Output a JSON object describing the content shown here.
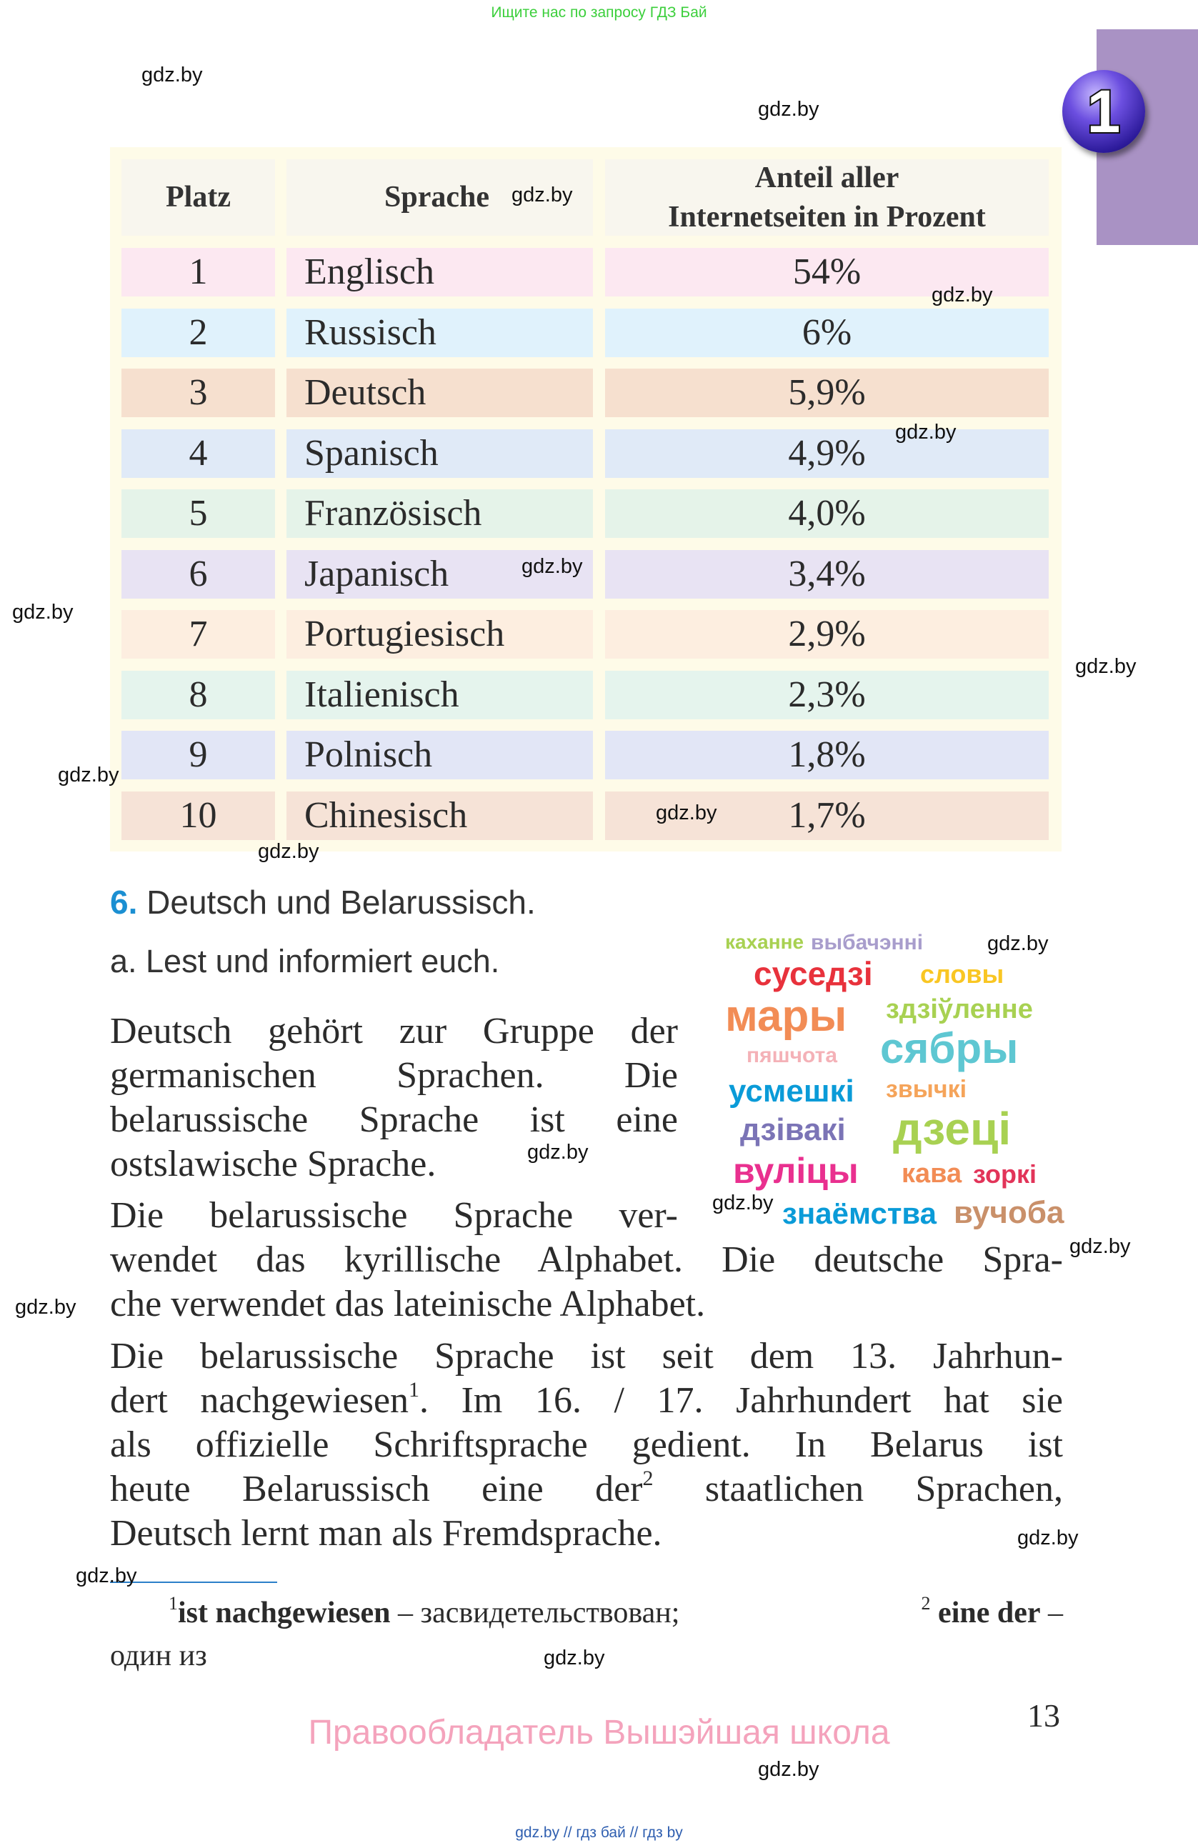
{
  "top_note": "Ищите нас по запросу ГДЗ Бай",
  "chapter_badge": "1",
  "table": {
    "headers": [
      "Platz",
      "Sprache",
      "Anteil aller",
      "Internetseiten in Prozent"
    ],
    "rows": [
      {
        "platz": "1",
        "sprache": "Englisch",
        "anteil": "54%",
        "color": "#fce8f1"
      },
      {
        "platz": "2",
        "sprache": "Russisch",
        "anteil": "6%",
        "color": "#e0f2fc"
      },
      {
        "platz": "3",
        "sprache": "Deutsch",
        "anteil": "5,9%",
        "color": "#f6e0cf"
      },
      {
        "platz": "4",
        "sprache": "Spanisch",
        "anteil": "4,9%",
        "color": "#e0eaf7"
      },
      {
        "platz": "5",
        "sprache": "Französisch",
        "anteil": "4,0%",
        "color": "#e5f3e9"
      },
      {
        "platz": "6",
        "sprache": "Japanisch",
        "anteil": "3,4%",
        "color": "#e8e3f3"
      },
      {
        "platz": "7",
        "sprache": "Portugiesisch",
        "anteil": "2,9%",
        "color": "#fdeee0"
      },
      {
        "platz": "8",
        "sprache": "Italienisch",
        "anteil": "2,3%",
        "color": "#e5f4ed"
      },
      {
        "platz": "9",
        "sprache": "Polnisch",
        "anteil": "1,8%",
        "color": "#e2e6f6"
      },
      {
        "platz": "10",
        "sprache": "Chinesisch",
        "anteil": "1,7%",
        "color": "#f6e3d7"
      }
    ]
  },
  "exercise": {
    "number": "6.",
    "title": "Deutsch und Belarussisch.",
    "task": "a. Lest und informiert euch."
  },
  "paragraph1": [
    "Deutsch gehört zur Gruppe der",
    "germanischen Sprachen. Die",
    "belarussische Sprache ist eine",
    "ostslawische Sprache."
  ],
  "paragraph2": [
    "Die belarussische Sprache ver-",
    "wendet das kyrillische Alphabet. Die deutsche Spra-",
    "che verwendet das lateinische Alphabet."
  ],
  "paragraph3": {
    "line1": "Die belarussische Sprache ist seit dem 13. Jahrhun-",
    "line2a": "dert nachgewiesen",
    "line2sup": "1",
    "line2b": ". Im 16. / 17. Jahrhundert hat sie",
    "line3": "als offizielle Schriftsprache gedient. In Belarus ist",
    "line4a": "heute Belarussisch eine der",
    "line4sup": "2",
    "line4b": " staatlichen Sprachen,",
    "line5": "Deutsch lernt man als Fremdsprache."
  },
  "word_cloud": [
    {
      "word": "выбачэнні",
      "color": "#a89dcc"
    },
    {
      "word": "суседзі",
      "color": "#e8323c"
    },
    {
      "word": "словы",
      "color": "#f9c623"
    },
    {
      "word": "мары",
      "color": "#f28c55"
    },
    {
      "word": "здзіўленне",
      "color": "#a8d152"
    },
    {
      "word": "пяшчота",
      "color": "#f4b1b7"
    },
    {
      "word": "сябры",
      "color": "#5ec7d2"
    },
    {
      "word": "усмешкі",
      "color": "#0a9bd8"
    },
    {
      "word": "звычкі",
      "color": "#f5a45a"
    },
    {
      "word": "дзівакі",
      "color": "#7b74b6"
    },
    {
      "word": "дзеці",
      "color": "#a8d152"
    },
    {
      "word": "вуліцы",
      "color": "#e9308f"
    },
    {
      "word": "кава",
      "color": "#f28c55"
    },
    {
      "word": "зоркі",
      "color": "#e23459"
    },
    {
      "word": "знаёмства",
      "color": "#0a9bd8"
    },
    {
      "word": "каханне",
      "color": "#a8d152"
    },
    {
      "word": "вучоба",
      "color": "#c9906a"
    }
  ],
  "footnotes": {
    "n1": "1",
    "term1": "ist nachgewiesen",
    "dash1": " – засвидетельствован; ",
    "n2": "2",
    "term2": "eine der",
    "dash2": " –",
    "line2": "один из"
  },
  "page_number": "13",
  "copyright": "Правообладатель Вышэйшая школа",
  "bottom_note": "gdz.by // гдз бай // гдз by",
  "watermark": "gdz.by"
}
